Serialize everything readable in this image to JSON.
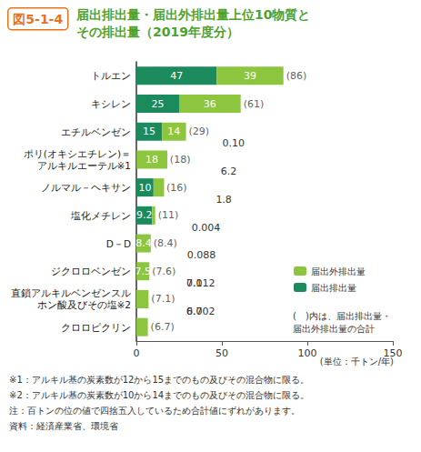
{
  "figure_label": "図5-1-4",
  "chart_data": {
    "type": "bar",
    "orientation": "horizontal",
    "stacked": true,
    "title": "届出排出量・届出外排出量上位10物質と\nその排出量（2019年度分）",
    "categories": [
      "トルエン",
      "キシレン",
      "エチルベンゼン",
      "ポリ(オキシエチレン)＝\nアルキルエーテル※1",
      "ノルマル－ヘキサン",
      "塩化メチレン",
      "D－D",
      "ジクロロベンゼン",
      "直鎖アルキルベンゼンスル\nホン酸及びその塩※2",
      "クロロピクリン"
    ],
    "series": [
      {
        "name": "届出排出量",
        "color": "#1b8a5c",
        "values": [
          47,
          25,
          15,
          0.1,
          10,
          9.2,
          0.004,
          0.088,
          0.012,
          0.002
        ],
        "value_labels": [
          "47",
          "25",
          "15",
          "0.10",
          "10",
          "9.2",
          "0.004",
          "0.088",
          "0.012",
          "0.002"
        ]
      },
      {
        "name": "届出外排出量",
        "color": "#8cc63f",
        "values": [
          39,
          36,
          14,
          18,
          6.2,
          1.8,
          8.4,
          7.5,
          7.1,
          6.7
        ]
      }
    ],
    "totals": [
      86,
      61,
      29,
      18,
      16,
      11,
      8.4,
      7.6,
      7.1,
      6.7
    ],
    "total_labels": [
      "(86)",
      "(61)",
      "(29)",
      "(18)",
      "(16)",
      "(11)",
      "(8.4)",
      "(7.6)",
      "(7.1)",
      "(6.7)"
    ],
    "xlim": [
      0,
      150
    ],
    "xticks": [
      0,
      50,
      100,
      150
    ],
    "x_label": "(単位：千トン/年)",
    "grid": false,
    "data_labels": true,
    "legend": "right",
    "annotation": "(　)内は、届出排出量・\n届出外排出量の合計"
  },
  "notes": [
    "※1：アルキル基の炭素数が12から15までのもの及びその混合物に限る。",
    "※2：アルキル基の炭素数が10から14までのもの及びその混合物に限る。",
    "注：百トンの位の値で四捨五入しているため合計値にずれがあります。",
    "資料：経済産業省、環境省"
  ]
}
